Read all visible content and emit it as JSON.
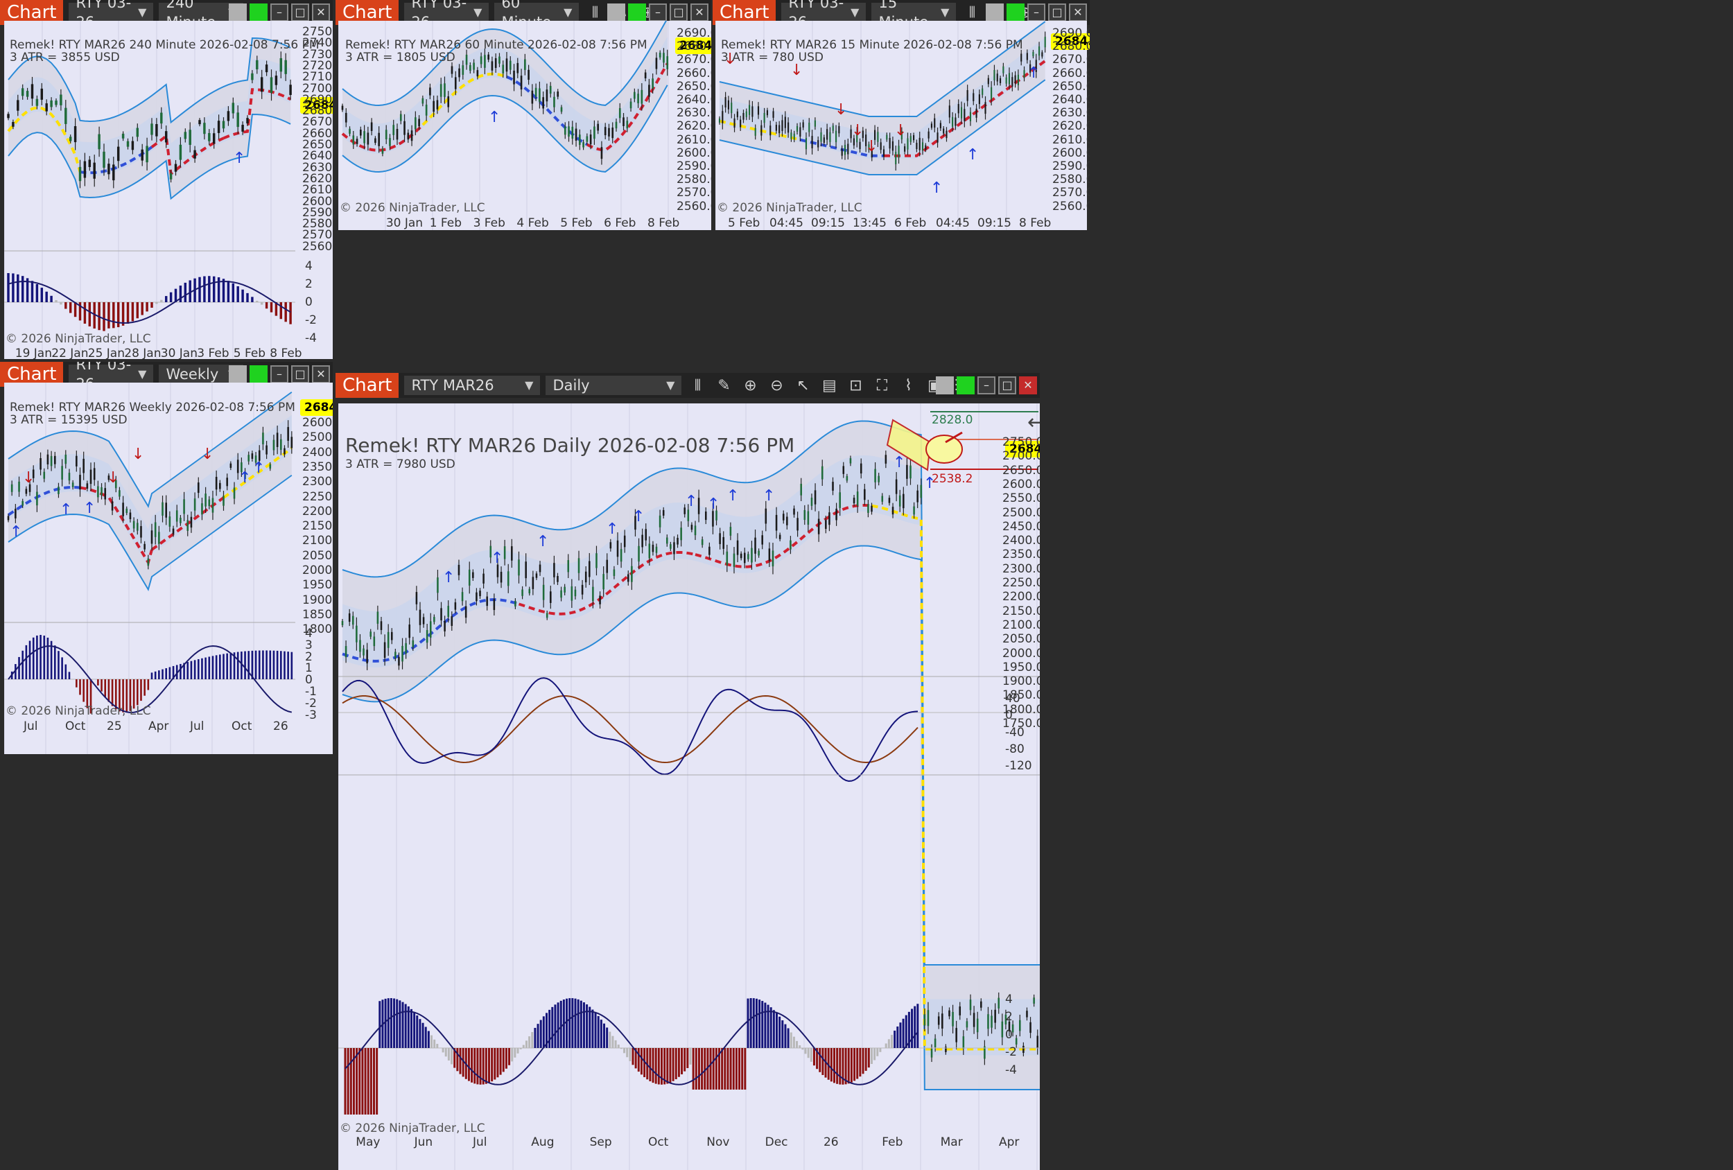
{
  "brand_label": "Chart",
  "price_tag": "2684.2",
  "copyright": "© 2026 NinjaTrader, LLC",
  "win_240": {
    "instrument": "RTY 03-26",
    "interval": "240 Minute",
    "title": "Remek!  RTY MAR26  240 Minute  2026-02-08 7:56 PM",
    "atr": "3 ATR = 3855 USD",
    "price_ticks": [
      "2750.0",
      "2740.0",
      "2730.0",
      "2720.0",
      "2710.0",
      "2700.0",
      "2690.0",
      "2680.0",
      "2670.0",
      "2660.0",
      "2650.0",
      "2640.0",
      "2630.0",
      "2620.0",
      "2610.0",
      "2600.0",
      "2590.0",
      "2580.0",
      "2570.0",
      "2560.0"
    ],
    "osc_ticks": [
      "4",
      "2",
      "0",
      "-2",
      "-4"
    ],
    "x_ticks": [
      "19 Jan",
      "22 Jan",
      "25 Jan",
      "28 Jan",
      "30 Jan",
      "3 Feb",
      "5 Feb",
      "8 Feb"
    ]
  },
  "win_60": {
    "instrument": "RTY 03-26",
    "interval": "60 Minute",
    "title": "Remek!  RTY MAR26  60 Minute  2026-02-08 7:56 PM",
    "atr": "3 ATR = 1805 USD",
    "price_ticks": [
      "2690.0",
      "2680.0",
      "2670.0",
      "2660.0",
      "2650.0",
      "2640.0",
      "2630.0",
      "2620.0",
      "2610.0",
      "2600.0",
      "2590.0",
      "2580.0",
      "2570.0",
      "2560.0"
    ],
    "x_ticks": [
      "30 Jan",
      "1 Feb",
      "3 Feb",
      "4 Feb",
      "5 Feb",
      "6 Feb",
      "8 Feb"
    ]
  },
  "win_15": {
    "instrument": "RTY 03-26",
    "interval": "15 Minute",
    "title": "Remek!  RTY MAR26  15 Minute  2026-02-08 7:56 PM",
    "atr": "3 ATR = 780 USD",
    "price_ticks": [
      "2690.0",
      "2680.0",
      "2670.0",
      "2660.0",
      "2650.0",
      "2640.0",
      "2630.0",
      "2620.0",
      "2610.0",
      "2600.0",
      "2590.0",
      "2580.0",
      "2570.0",
      "2560.0"
    ],
    "x_ticks": [
      "5 Feb",
      "04:45",
      "09:15",
      "13:45",
      "6 Feb",
      "04:45",
      "09:15",
      "8 Feb"
    ]
  },
  "win_weekly": {
    "instrument": "RTY 03-26",
    "interval": "Weekly",
    "title": "Remek!  RTY MAR26  Weekly  2026-02-08 7:56 PM",
    "atr": "3 ATR = 15395 USD",
    "price_ticks": [
      "2600.0",
      "2500.0",
      "2400.0",
      "2350.0",
      "2300.0",
      "2250.0",
      "2200.0",
      "2150.0",
      "2100.0",
      "2050.0",
      "2000.0",
      "1950.0",
      "1900.0",
      "1850.0",
      "1800.0"
    ],
    "osc_ticks": [
      "4",
      "3",
      "2",
      "1",
      "0",
      "-1",
      "-2",
      "-3"
    ],
    "x_ticks": [
      "Jul",
      "Oct",
      "25",
      "Apr",
      "Jul",
      "Oct",
      "26"
    ]
  },
  "win_daily": {
    "instrument": "RTY MAR26",
    "interval": "Daily",
    "title": "Remek!  RTY MAR26  Daily  2026-02-08 7:56 PM",
    "atr": "3 ATR = 7980 USD",
    "target_high": "2828.0",
    "target_low": "2538.2",
    "price_ticks": [
      "2750.0",
      "2700.0",
      "2650.0",
      "2600.0",
      "2550.0",
      "2500.0",
      "2450.0",
      "2400.0",
      "2350.0",
      "2300.0",
      "2250.0",
      "2200.0",
      "2150.0",
      "2100.0",
      "2050.0",
      "2000.0",
      "1950.0",
      "1900.0",
      "1850.0",
      "1800.0",
      "1750.0"
    ],
    "stoch_ticks": [
      "40",
      "0",
      "-40",
      "-80",
      "-120"
    ],
    "osc_ticks": [
      "4",
      "2",
      "0",
      "-2",
      "-4"
    ],
    "x_ticks": [
      "May",
      "Jun",
      "Jul",
      "Aug",
      "Sep",
      "Oct",
      "Nov",
      "Dec",
      "26",
      "Feb",
      "Mar",
      "Apr"
    ]
  },
  "colors": {
    "bull": "#1a1a1a",
    "band": "#2a8ad8",
    "up_arrow": "#1e3cd8",
    "down_arrow": "#c01818",
    "hist_pos": "#14147a",
    "hist_neg": "#8b1010",
    "hist_neutral": "#b8b8b8",
    "accent": "#d8421a"
  }
}
